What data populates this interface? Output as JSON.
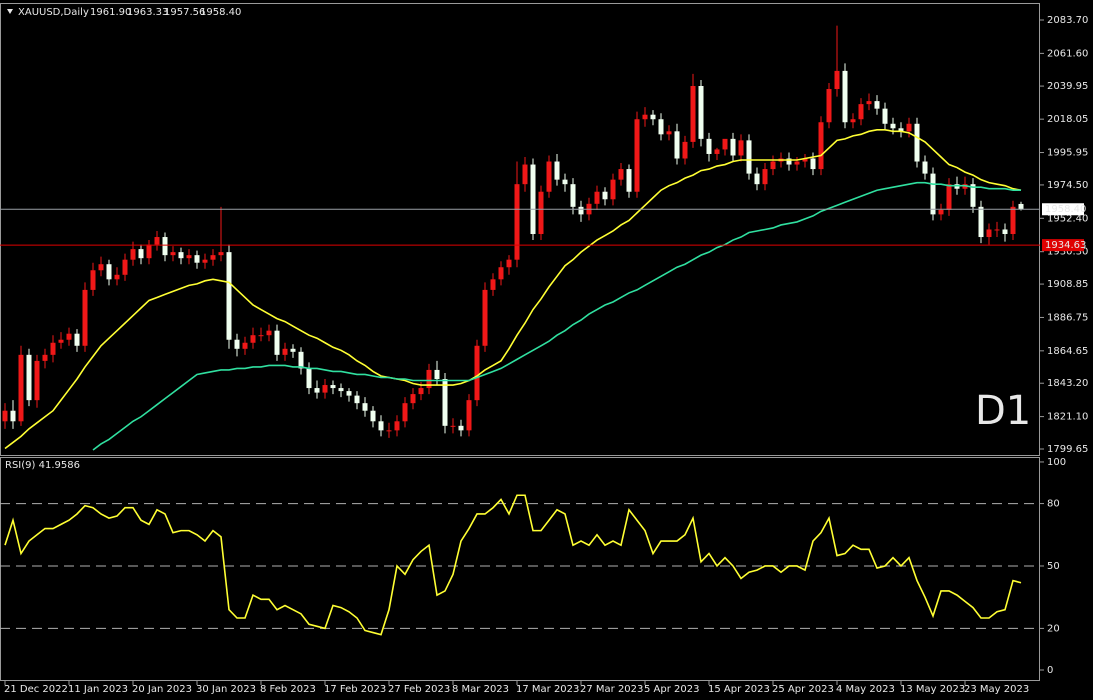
{
  "chart_data": [
    {
      "type": "candlestick",
      "title": "XAUUSD,Daily",
      "header_values": [
        "1961.90",
        "1963.33",
        "1957.56",
        "1958.40"
      ],
      "annotation": "D1",
      "annotation_color": "#e81010",
      "categories": [
        "21 Dec 2022",
        null,
        null,
        null,
        null,
        null,
        null,
        null,
        "11 Jan 2023",
        null,
        null,
        null,
        null,
        null,
        null,
        null,
        "20 Jan 2023",
        null,
        null,
        null,
        null,
        null,
        null,
        null,
        "30 Jan 2023",
        null,
        null,
        null,
        null,
        null,
        null,
        null,
        "8 Feb 2023",
        null,
        null,
        null,
        null,
        null,
        null,
        null,
        "17 Feb 2023",
        null,
        null,
        null,
        null,
        null,
        null,
        null,
        "27 Feb 2023",
        null,
        null,
        null,
        null,
        null,
        null,
        null,
        "8 Mar 2023",
        null,
        null,
        null,
        null,
        null,
        null,
        null,
        "17 Mar 2023",
        null,
        null,
        null,
        null,
        null,
        null,
        null,
        "27 Mar 2023",
        null,
        null,
        null,
        null,
        null,
        null,
        null,
        "5 Apr 2023",
        null,
        null,
        null,
        null,
        null,
        null,
        null,
        "15 Apr 2023",
        null,
        null,
        null,
        null,
        null,
        null,
        null,
        "25 Apr 2023",
        null,
        null,
        null,
        null,
        null,
        null,
        null,
        "4 May 2023",
        null,
        null,
        null,
        null,
        null,
        null,
        null,
        "13 May 2023",
        null,
        null,
        null,
        null,
        null,
        null,
        null,
        "23 May 2023",
        null,
        null,
        null,
        null,
        null,
        null,
        null
      ],
      "open": [
        1818,
        1825,
        1818,
        1862,
        1832,
        1858,
        1862,
        1870,
        1872,
        1876,
        1868,
        1905,
        1918,
        1922,
        1912,
        1915,
        1925,
        1932,
        1926,
        1935,
        1940,
        1928,
        1930,
        1926,
        1928,
        1923,
        1925,
        1928,
        1930,
        1872,
        1866,
        1870,
        1875,
        1875,
        1878,
        1862,
        1866,
        1864,
        1853,
        1840,
        1837,
        1842,
        1840,
        1838,
        1835,
        1830,
        1825,
        1818,
        1812,
        1812,
        1818,
        1830,
        1836,
        1840,
        1852,
        1846,
        1815,
        1815,
        1812,
        1832,
        1868,
        1905,
        1912,
        1920,
        1925,
        1975,
        1988,
        1942,
        1970,
        1990,
        1978,
        1975,
        1960,
        1955,
        1962,
        1970,
        1965,
        1978,
        1985,
        1970,
        2018,
        2021,
        2018,
        2008,
        2010,
        1992,
        2003,
        2040,
        2005,
        1995,
        1998,
        2005,
        1994,
        2004,
        1982,
        1975,
        1985,
        1990,
        1992,
        1988,
        1990,
        1992,
        1985,
        2016,
        2038,
        2050,
        2016,
        2018,
        2028,
        2030,
        2025,
        2015,
        2012,
        2010,
        2015,
        1990,
        1982,
        1955,
        1958,
        1975,
        1972,
        1975,
        1960,
        1940,
        1945,
        1945,
        1942,
        1961.9
      ],
      "high": [
        1830,
        1832,
        1868,
        1866,
        1862,
        1866,
        1875,
        1877,
        1880,
        1879,
        1910,
        1923,
        1927,
        1925,
        1920,
        1929,
        1937,
        1935,
        1938,
        1944,
        1943,
        1934,
        1933,
        1932,
        1931,
        1929,
        1932,
        1960,
        1935,
        1876,
        1874,
        1880,
        1880,
        1882,
        1882,
        1870,
        1869,
        1867,
        1857,
        1845,
        1846,
        1845,
        1843,
        1840,
        1838,
        1834,
        1828,
        1822,
        1817,
        1822,
        1834,
        1840,
        1844,
        1856,
        1858,
        1850,
        1820,
        1819,
        1836,
        1872,
        1910,
        1916,
        1924,
        1928,
        1990,
        1993,
        1992,
        1974,
        1994,
        1995,
        1982,
        1979,
        1964,
        1966,
        1974,
        1973,
        1982,
        1989,
        1988,
        2023,
        2026,
        2024,
        2022,
        2014,
        2015,
        2007,
        2048,
        2044,
        2009,
        1999,
        2003,
        2009,
        2008,
        2008,
        1986,
        1989,
        1994,
        1996,
        1996,
        1993,
        1995,
        1996,
        2020,
        2042,
        2080,
        2055,
        2022,
        2032,
        2035,
        2034,
        2029,
        2019,
        2016,
        2019,
        2019,
        1994,
        1986,
        1962,
        1979,
        1980,
        1980,
        1979,
        1964,
        1949,
        1950,
        1949,
        1964,
        1963.33
      ],
      "low": [
        1813,
        1813,
        1815,
        1828,
        1827,
        1853,
        1857,
        1866,
        1868,
        1864,
        1864,
        1901,
        1914,
        1908,
        1908,
        1911,
        1921,
        1922,
        1922,
        1931,
        1924,
        1924,
        1922,
        1922,
        1919,
        1919,
        1921,
        1924,
        1866,
        1861,
        1862,
        1866,
        1871,
        1871,
        1858,
        1858,
        1860,
        1849,
        1836,
        1833,
        1833,
        1836,
        1834,
        1831,
        1826,
        1821,
        1814,
        1808,
        1807,
        1808,
        1814,
        1826,
        1832,
        1836,
        1842,
        1810,
        1810,
        1808,
        1808,
        1828,
        1864,
        1901,
        1908,
        1915,
        1920,
        1970,
        1938,
        1938,
        1966,
        1974,
        1970,
        1955,
        1950,
        1951,
        1958,
        1961,
        1961,
        1974,
        1966,
        1966,
        2013,
        2014,
        2004,
        2004,
        1988,
        1988,
        1999,
        2000,
        1990,
        1991,
        1994,
        1990,
        1990,
        1978,
        1971,
        1971,
        1981,
        1986,
        1984,
        1984,
        1986,
        1981,
        1981,
        2012,
        2033,
        2012,
        2012,
        2014,
        2024,
        2021,
        2011,
        2008,
        2006,
        2006,
        1986,
        1978,
        1951,
        1951,
        1954,
        1968,
        1968,
        1956,
        1936,
        1935,
        1940,
        1937,
        1938,
        1957.56
      ],
      "close": [
        1825,
        1818,
        1862,
        1832,
        1858,
        1862,
        1870,
        1872,
        1876,
        1868,
        1905,
        1918,
        1922,
        1912,
        1915,
        1925,
        1932,
        1926,
        1935,
        1940,
        1928,
        1930,
        1926,
        1928,
        1923,
        1925,
        1928,
        1930,
        1872,
        1866,
        1870,
        1875,
        1875,
        1878,
        1862,
        1866,
        1864,
        1853,
        1840,
        1837,
        1842,
        1840,
        1838,
        1835,
        1830,
        1825,
        1818,
        1812,
        1812,
        1818,
        1830,
        1836,
        1840,
        1852,
        1846,
        1815,
        1815,
        1812,
        1832,
        1868,
        1905,
        1912,
        1920,
        1925,
        1975,
        1988,
        1942,
        1970,
        1990,
        1978,
        1975,
        1960,
        1955,
        1962,
        1970,
        1965,
        1978,
        1985,
        1970,
        2018,
        2021,
        2018,
        2008,
        2010,
        1992,
        2003,
        2040,
        2005,
        1995,
        1998,
        2005,
        1994,
        2004,
        1982,
        1975,
        1985,
        1990,
        1992,
        1988,
        1990,
        1992,
        1985,
        2016,
        2038,
        2050,
        2016,
        2018,
        2028,
        2030,
        2025,
        2015,
        2012,
        2010,
        2015,
        1990,
        1982,
        1955,
        1958,
        1975,
        1972,
        1975,
        1960,
        1940,
        1945,
        1945,
        1942,
        1960,
        1958.4
      ],
      "up_color": "#f01818",
      "down_color": "#f0fff0",
      "series": [
        {
          "type": "line",
          "color": "#ffff33",
          "values": [
            1800,
            1804,
            1808,
            1813,
            1817,
            1821,
            1825,
            1832,
            1839,
            1846,
            1854,
            1861,
            1868,
            1873,
            1878,
            1883,
            1888,
            1893,
            1898,
            1900,
            1902,
            1904,
            1906,
            1908,
            1909,
            1911,
            1912,
            1911,
            1910,
            1905,
            1900,
            1895,
            1892,
            1889,
            1886,
            1884,
            1881,
            1878,
            1875,
            1873,
            1870,
            1867,
            1865,
            1862,
            1858,
            1855,
            1851,
            1848,
            1847,
            1846,
            1845,
            1843,
            1842,
            1842,
            1842,
            1842,
            1842,
            1843,
            1845,
            1848,
            1852,
            1855,
            1858,
            1866,
            1875,
            1883,
            1892,
            1899,
            1907,
            1914,
            1921,
            1925,
            1930,
            1934,
            1938,
            1941,
            1944,
            1948,
            1951,
            1956,
            1961,
            1966,
            1971,
            1974,
            1976,
            1979,
            1981,
            1984,
            1985,
            1987,
            1988,
            1990,
            1991,
            1991,
            1991,
            1991,
            1991,
            1991,
            1991,
            1991,
            1992,
            1993,
            1994,
            1999,
            2004,
            2005,
            2007,
            2008,
            2010,
            2011,
            2011,
            2010,
            2010,
            2009,
            2006,
            2003,
            1998,
            1993,
            1988,
            1986,
            1983,
            1981,
            1978,
            1976,
            1975,
            1974,
            1972,
            1971
          ]
        },
        {
          "type": "line",
          "color": "#30e0a0",
          "values": [
            null,
            null,
            null,
            null,
            null,
            null,
            null,
            null,
            null,
            null,
            null,
            1799,
            1803,
            1806,
            1810,
            1814,
            1818,
            1821,
            1825,
            1829,
            1833,
            1837,
            1841,
            1845,
            1849,
            1850,
            1851,
            1852,
            1852,
            1853,
            1853,
            1854,
            1854,
            1855,
            1855,
            1855,
            1854,
            1854,
            1853,
            1853,
            1852,
            1851,
            1851,
            1850,
            1849,
            1849,
            1848,
            1847,
            1847,
            1846,
            1846,
            1845,
            1845,
            1845,
            1845,
            1845,
            1845,
            1845,
            1845,
            1847,
            1849,
            1851,
            1853,
            1856,
            1859,
            1862,
            1865,
            1868,
            1871,
            1875,
            1878,
            1882,
            1885,
            1889,
            1892,
            1895,
            1897,
            1900,
            1903,
            1905,
            1908,
            1911,
            1914,
            1917,
            1920,
            1922,
            1925,
            1928,
            1930,
            1933,
            1935,
            1938,
            1940,
            1943,
            1944,
            1945,
            1946,
            1948,
            1949,
            1950,
            1952,
            1954,
            1957,
            1959,
            1961,
            1963,
            1965,
            1967,
            1969,
            1971,
            1972,
            1973,
            1974,
            1975,
            1976,
            1976,
            1975,
            1975,
            1974,
            1974,
            1974,
            1973,
            1973,
            1972,
            1972,
            1972,
            1971,
            1971
          ]
        }
      ],
      "price_lines": [
        {
          "value": 1958.4,
          "label": "1958.40",
          "color": "#9aa0a6",
          "label_fill": "#ffffff",
          "label_color": "#000000"
        },
        {
          "value": 1934.63,
          "label": "1934.63",
          "color": "#e00000",
          "label_fill": "#e00000",
          "label_color": "#ffffff"
        }
      ],
      "ylim": [
        1795.68,
        2094.96
      ],
      "yticks": [
        {
          "value": 2083.7,
          "label": "2083.70"
        },
        {
          "value": 2061.6,
          "label": "2061.60"
        },
        2039.95,
        2018.05,
        1995.95,
        {
          "value": 1974.5,
          "label": "1974.50"
        },
        {
          "value": 1952.4,
          "label": "1952.40"
        },
        {
          "value": 1930.3,
          "label": "1930.30"
        },
        1908.85,
        1886.75,
        1864.65,
        {
          "value": 1843.2,
          "label": "1843.20"
        },
        {
          "value": 1821.1,
          "label": "1821.10"
        },
        1799.65
      ],
      "grid": false
    },
    {
      "type": "line",
      "title": "RSI(9) 41.9586",
      "color": "#ffff33",
      "values": [
        60,
        72,
        56,
        62,
        65,
        68,
        68,
        70,
        72,
        75,
        79,
        78,
        75,
        73,
        74,
        78,
        78,
        72,
        70,
        77,
        75,
        66,
        67,
        67,
        65,
        62,
        67,
        64,
        29,
        25,
        25,
        36,
        34,
        34,
        29,
        31,
        29,
        27,
        22,
        21,
        20,
        31,
        30,
        28,
        25,
        19,
        18,
        17,
        29,
        50,
        46,
        53,
        57,
        60,
        36,
        38,
        46,
        62,
        68,
        75,
        75,
        78,
        82,
        75,
        84,
        84,
        67,
        67,
        72,
        77,
        75,
        60,
        62,
        60,
        65,
        60,
        62,
        60,
        77,
        72,
        67,
        56,
        62,
        62,
        62,
        65,
        73,
        52,
        56,
        50,
        54,
        50,
        44,
        47,
        48,
        50,
        50,
        47,
        50,
        50,
        48,
        62,
        66,
        73,
        55,
        56,
        60,
        58,
        58,
        49,
        50,
        54,
        50,
        54,
        43,
        35,
        26,
        38,
        38,
        36,
        33,
        30,
        25,
        25,
        28,
        29,
        43,
        41.9586
      ],
      "ylim": [
        -4.8,
        101.9
      ],
      "yticks": [
        0,
        20,
        50,
        80,
        100
      ],
      "levels": [
        20,
        50,
        80
      ],
      "level_color": "#b0b0b0"
    }
  ]
}
